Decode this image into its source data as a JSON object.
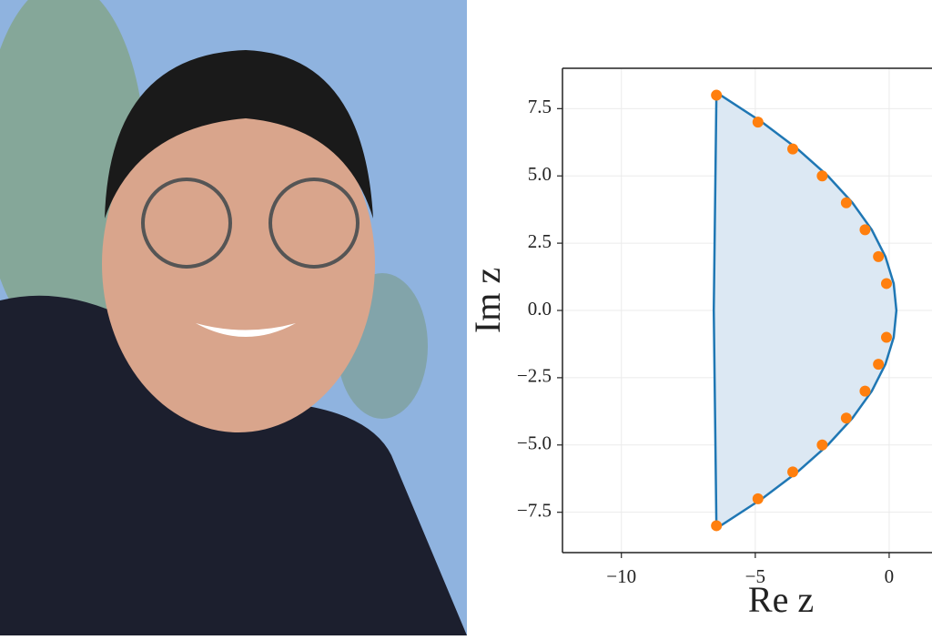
{
  "chart_data": {
    "type": "scatter",
    "xlabel": "Re z",
    "ylabel": "Im z",
    "xlim": [
      -12.2,
      1.6
    ],
    "ylim": [
      -9,
      9
    ],
    "xticks": [
      {
        "value": -10,
        "label": "−10"
      },
      {
        "value": -5,
        "label": "−5"
      },
      0
    ],
    "yticks": [
      {
        "value": -7.5,
        "label": "−7.5"
      },
      {
        "value": -5,
        "label": "−5.0"
      },
      {
        "value": -2.5,
        "label": "−2.5"
      },
      {
        "value": 0,
        "label": "0.0"
      },
      2.5,
      {
        "value": 5,
        "label": "5.0"
      },
      7.5
    ],
    "grid": true,
    "curve": {
      "color": "#1f77b4",
      "fill": "#dce8f3",
      "x": [
        -6.45,
        -4.75,
        -3.42,
        -2.29,
        -1.37,
        -0.65,
        -0.14,
        0.17,
        0.27,
        0.17,
        -0.14,
        -0.65,
        -1.37,
        -2.29,
        -3.42,
        -4.75,
        -6.45,
        -6.5,
        -6.55,
        -6.5,
        -6.45
      ],
      "y": [
        8.1,
        7,
        6,
        5,
        4,
        3,
        2,
        1,
        0,
        -1,
        -2,
        -3,
        -4,
        -5,
        -6,
        -7,
        -8.1,
        -4,
        0,
        4,
        8.1
      ]
    },
    "points": {
      "color": "#ff7f0e",
      "x": [
        -6.45,
        -4.9,
        -3.6,
        -2.5,
        -1.6,
        -0.9,
        -0.4,
        -0.1,
        -0.1,
        -0.4,
        -0.9,
        -1.6,
        -2.5,
        -3.6,
        -4.9,
        -6.45
      ],
      "y": [
        8,
        7,
        6,
        5,
        4,
        3,
        2,
        1,
        -1,
        -2,
        -3,
        -4,
        -5,
        -6,
        -7,
        -8
      ]
    }
  }
}
